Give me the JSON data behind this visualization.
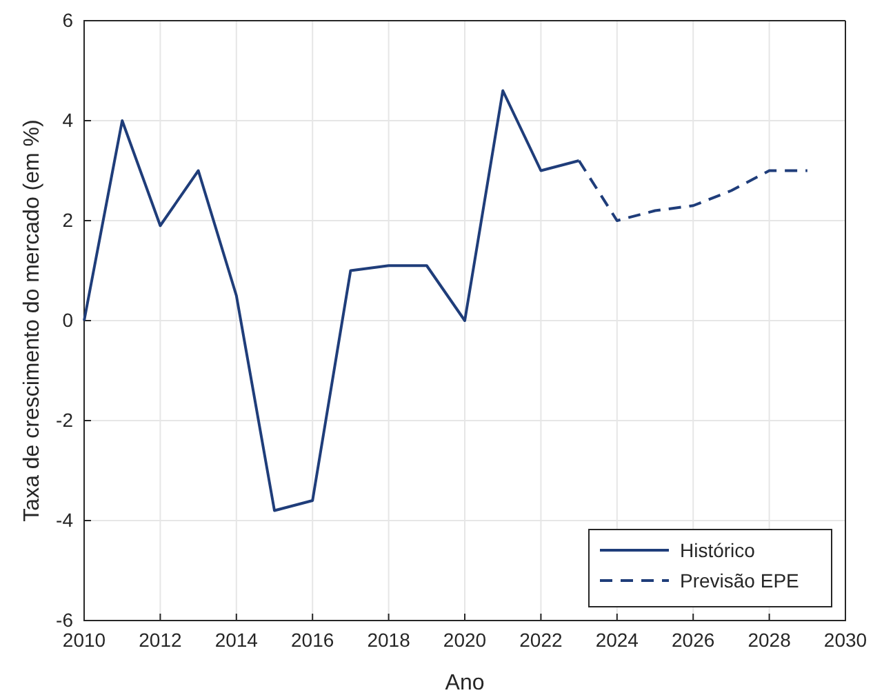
{
  "chart_data": {
    "type": "line",
    "xlabel": "Ano",
    "ylabel": "Taxa de crescimento do mercado (em %)",
    "series": [
      {
        "name": "Histórico",
        "color": "#1f3d7a",
        "line_style": "solid",
        "x": [
          2010,
          2011,
          2012,
          2013,
          2014,
          2015,
          2016,
          2017,
          2018,
          2019,
          2020,
          2021,
          2022,
          2023
        ],
        "values": [
          0,
          4,
          1.9,
          3,
          0.5,
          -3.8,
          -3.6,
          1,
          1.1,
          1.1,
          0,
          4.6,
          3,
          3.2
        ]
      },
      {
        "name": "Previsão EPE",
        "color": "#1f3d7a",
        "line_style": "dashed",
        "x": [
          2023,
          2024,
          2025,
          2026,
          2027,
          2028,
          2029
        ],
        "values": [
          3.2,
          2,
          2.2,
          2.3,
          2.6,
          3,
          3
        ]
      }
    ],
    "xlim": [
      2010,
      2030
    ],
    "xticks": [
      2010,
      2012,
      2014,
      2016,
      2018,
      2020,
      2022,
      2024,
      2026,
      2028,
      2030
    ],
    "ylim": [
      -6,
      6
    ],
    "yticks": [
      -6,
      -4,
      -2,
      0,
      2,
      4,
      6
    ],
    "grid": true,
    "legend": "bottom right",
    "marker": "none"
  }
}
